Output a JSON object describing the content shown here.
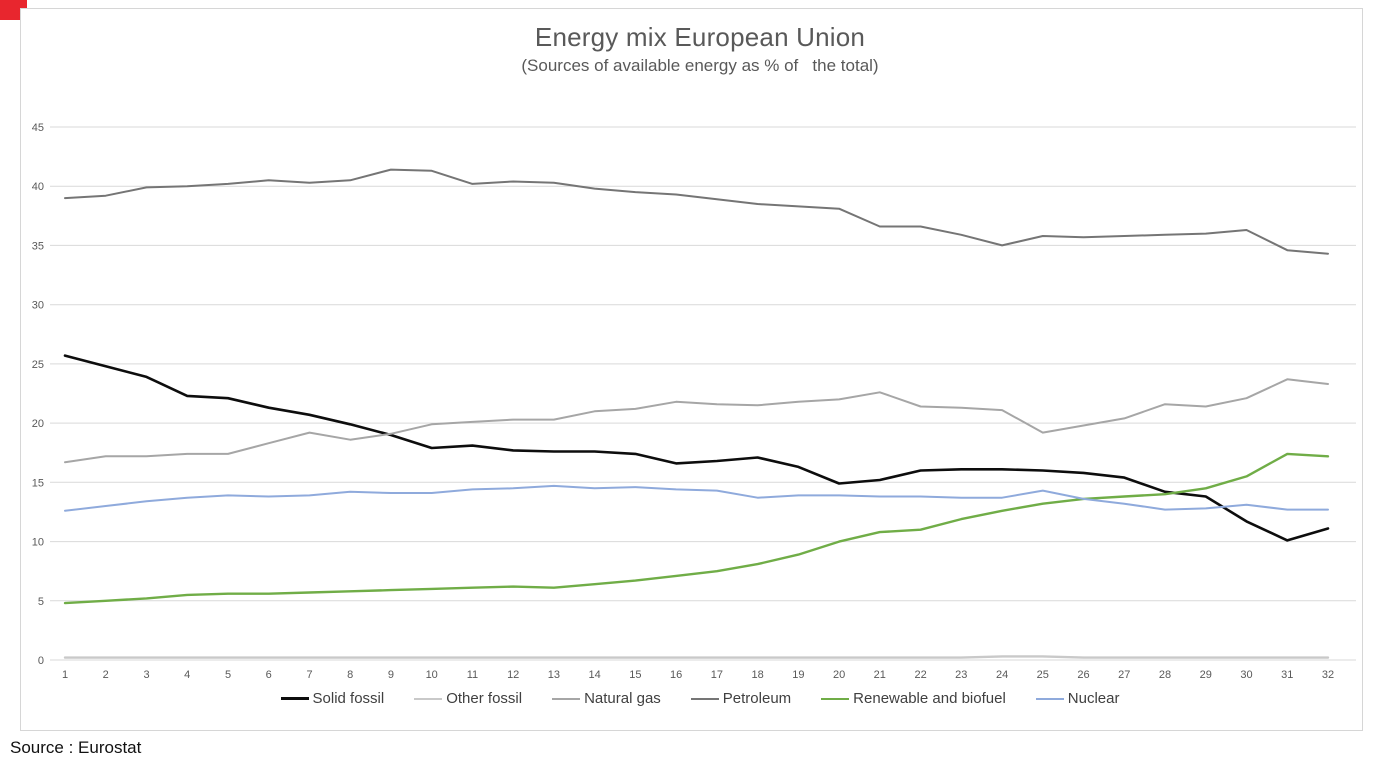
{
  "page": {
    "source_note": "Source : Eurostat"
  },
  "chart": {
    "title": "Energy mix European Union",
    "subtitle": "(Sources of available energy as % of   the total)"
  },
  "chart_data": {
    "type": "line",
    "title": "Energy mix European Union",
    "subtitle": "(Sources of available energy as % of   the total)",
    "xlabel": "",
    "ylabel": "",
    "x": [
      "1",
      "2",
      "3",
      "4",
      "5",
      "6",
      "7",
      "8",
      "9",
      "10",
      "11",
      "12",
      "13",
      "14",
      "15",
      "16",
      "17",
      "18",
      "19",
      "20",
      "21",
      "22",
      "23",
      "24",
      "25",
      "26",
      "27",
      "28",
      "29",
      "30",
      "31",
      "32"
    ],
    "ylim": [
      0,
      45
    ],
    "yticks": [
      0,
      5,
      10,
      15,
      20,
      25,
      30,
      35,
      40,
      45
    ],
    "grid": true,
    "legend_position": "bottom",
    "series": [
      {
        "name": "Solid fossil",
        "color": "#0d0d0d",
        "stroke_width": 2.6,
        "values": [
          25.7,
          24.8,
          23.9,
          22.3,
          22.1,
          21.3,
          20.7,
          19.9,
          19.0,
          17.9,
          18.1,
          17.7,
          17.6,
          17.6,
          17.4,
          16.6,
          16.8,
          17.1,
          16.3,
          14.9,
          15.2,
          16.0,
          16.1,
          16.1,
          16.0,
          15.8,
          15.4,
          14.2,
          13.8,
          11.7,
          10.1,
          11.1
        ]
      },
      {
        "name": "Other fossil",
        "color": "#c9c9c9",
        "stroke_width": 2.4,
        "values": [
          0.2,
          0.2,
          0.2,
          0.2,
          0.2,
          0.2,
          0.2,
          0.2,
          0.2,
          0.2,
          0.2,
          0.2,
          0.2,
          0.2,
          0.2,
          0.2,
          0.2,
          0.2,
          0.2,
          0.2,
          0.2,
          0.2,
          0.2,
          0.3,
          0.3,
          0.2,
          0.2,
          0.2,
          0.2,
          0.2,
          0.2,
          0.2
        ]
      },
      {
        "name": "Natural gas",
        "color": "#a6a6a6",
        "stroke_width": 2.0,
        "values": [
          16.7,
          17.2,
          17.2,
          17.4,
          17.4,
          18.3,
          19.2,
          18.6,
          19.1,
          19.9,
          20.1,
          20.3,
          20.3,
          21.0,
          21.2,
          21.8,
          21.6,
          21.5,
          21.8,
          22.0,
          22.6,
          21.4,
          21.3,
          21.1,
          19.2,
          19.8,
          20.4,
          21.6,
          21.4,
          22.1,
          23.7,
          23.3
        ]
      },
      {
        "name": "Petroleum",
        "color": "#757575",
        "stroke_width": 2.0,
        "values": [
          39.0,
          39.2,
          39.9,
          40.0,
          40.2,
          40.5,
          40.3,
          40.5,
          41.4,
          41.3,
          40.2,
          40.4,
          40.3,
          39.8,
          39.5,
          39.3,
          38.9,
          38.5,
          38.3,
          38.1,
          36.6,
          36.6,
          35.9,
          35.0,
          35.8,
          35.7,
          35.8,
          35.9,
          36.0,
          36.3,
          34.6,
          34.3
        ]
      },
      {
        "name": "Renewable and biofuel",
        "color": "#70ad47",
        "stroke_width": 2.4,
        "values": [
          4.8,
          5.0,
          5.2,
          5.5,
          5.6,
          5.6,
          5.7,
          5.8,
          5.9,
          6.0,
          6.1,
          6.2,
          6.1,
          6.4,
          6.7,
          7.1,
          7.5,
          8.1,
          8.9,
          10.0,
          10.8,
          11.0,
          11.9,
          12.6,
          13.2,
          13.6,
          13.8,
          14.0,
          14.5,
          15.5,
          17.4,
          17.2
        ]
      },
      {
        "name": "Nuclear",
        "color": "#8faadc",
        "stroke_width": 2.0,
        "values": [
          12.6,
          13.0,
          13.4,
          13.7,
          13.9,
          13.8,
          13.9,
          14.2,
          14.1,
          14.1,
          14.4,
          14.5,
          14.7,
          14.5,
          14.6,
          14.4,
          14.3,
          13.7,
          13.9,
          13.9,
          13.8,
          13.8,
          13.7,
          13.7,
          14.3,
          13.6,
          13.2,
          12.7,
          12.8,
          13.1,
          12.7,
          12.7
        ]
      }
    ]
  }
}
